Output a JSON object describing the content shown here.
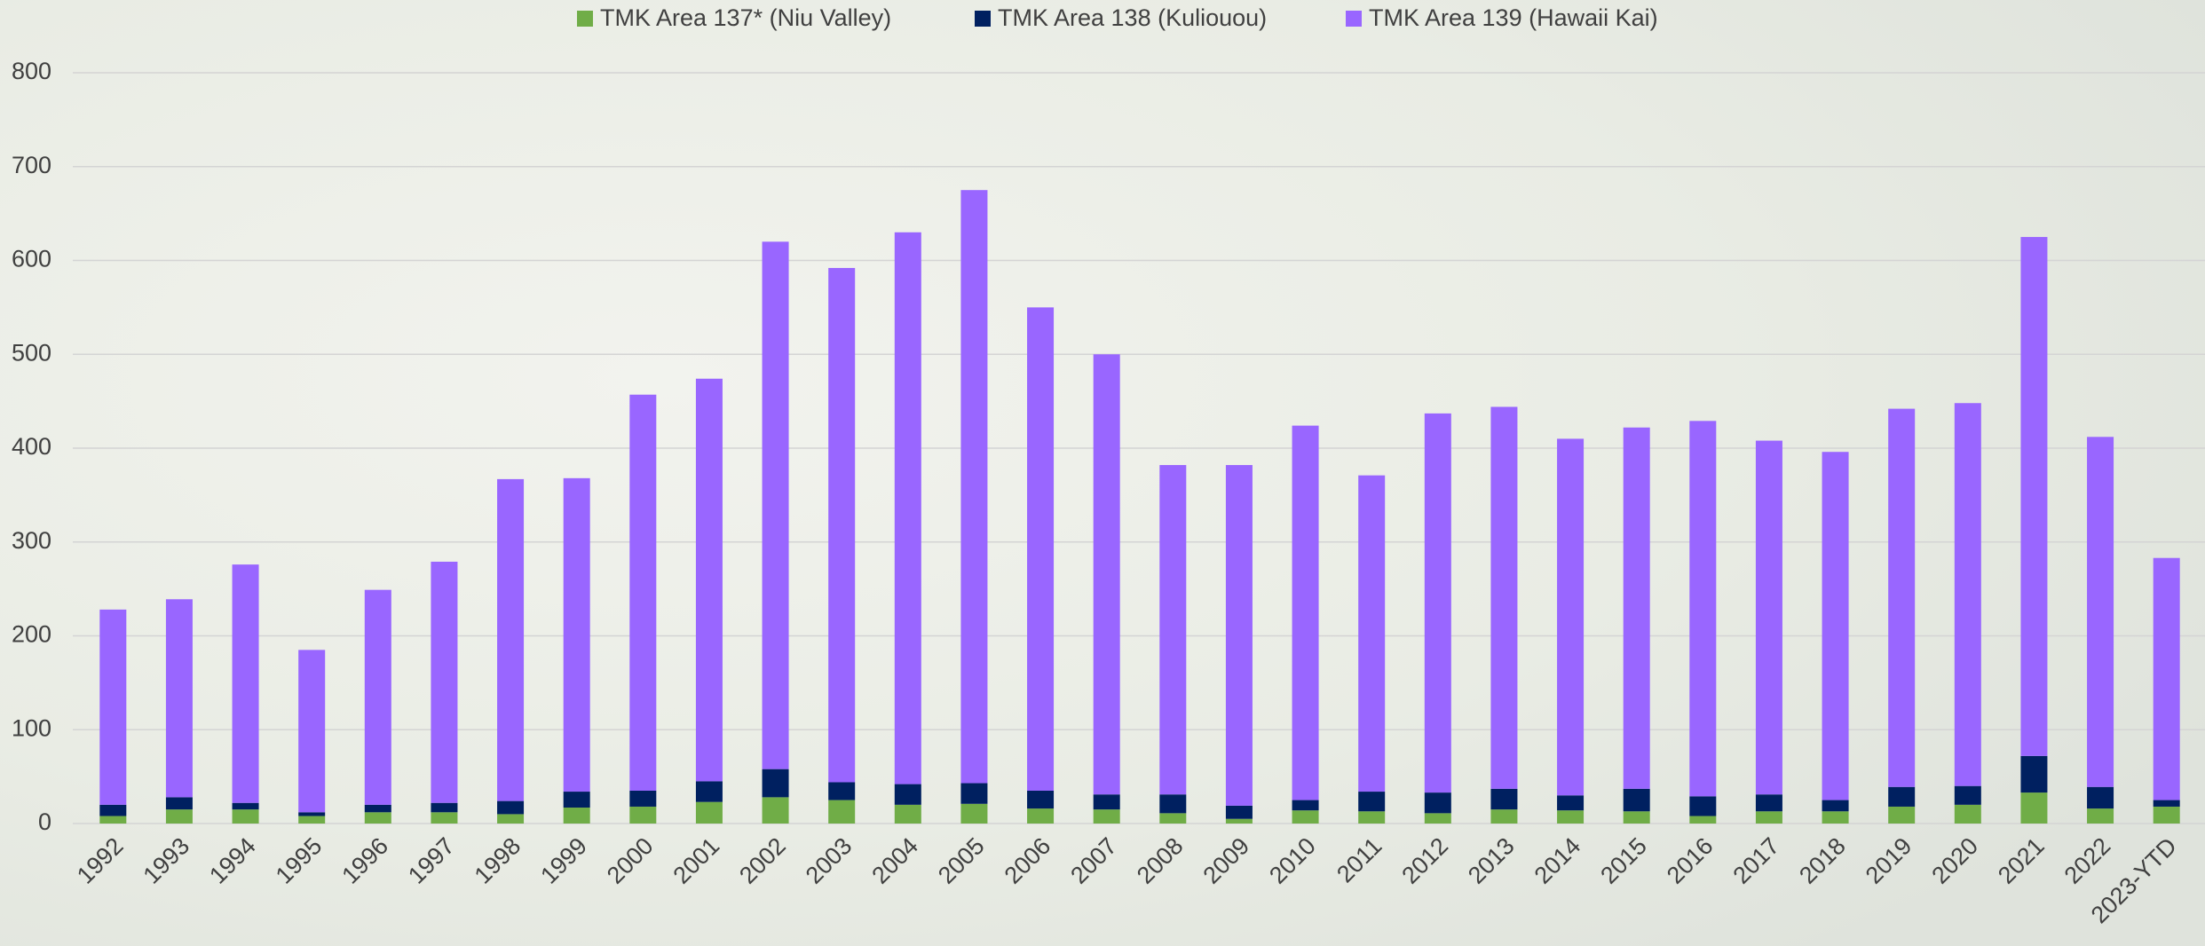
{
  "chart_data": {
    "type": "stacked-bar",
    "categories": [
      "1992",
      "1993",
      "1994",
      "1995",
      "1996",
      "1997",
      "1998",
      "1999",
      "2000",
      "2001",
      "2002",
      "2003",
      "2004",
      "2005",
      "2006",
      "2007",
      "2008",
      "2009",
      "2010",
      "2011",
      "2012",
      "2013",
      "2014",
      "2015",
      "2016",
      "2017",
      "2018",
      "2019",
      "2020",
      "2021",
      "2022",
      "2023-YTD"
    ],
    "series": [
      {
        "name": "TMK Area 137* (Niu Valley)",
        "color": "#70ad47",
        "values": [
          8,
          15,
          15,
          8,
          12,
          12,
          10,
          17,
          18,
          23,
          28,
          25,
          20,
          21,
          16,
          15,
          11,
          5,
          14,
          13,
          11,
          15,
          14,
          13,
          8,
          13,
          13,
          18,
          20,
          33,
          16,
          18
        ]
      },
      {
        "name": "TMK Area 138 (Kuliouou)",
        "color": "#002060",
        "values": [
          12,
          13,
          7,
          4,
          8,
          10,
          14,
          17,
          17,
          22,
          30,
          19,
          22,
          22,
          19,
          16,
          20,
          14,
          11,
          21,
          22,
          22,
          16,
          24,
          21,
          18,
          12,
          21,
          20,
          39,
          23,
          7
        ]
      },
      {
        "name": "TMK Area 139 (Hawaii Kai)",
        "color": "#9966ff",
        "values": [
          208,
          211,
          254,
          173,
          229,
          257,
          343,
          334,
          422,
          429,
          562,
          548,
          588,
          632,
          515,
          469,
          351,
          363,
          399,
          337,
          404,
          407,
          380,
          385,
          400,
          377,
          371,
          403,
          408,
          553,
          373,
          258
        ]
      }
    ],
    "ylim": [
      0,
      800
    ],
    "yticks": [
      0,
      100,
      200,
      300,
      400,
      500,
      600,
      700,
      800
    ],
    "grid": true,
    "legend": "top"
  }
}
